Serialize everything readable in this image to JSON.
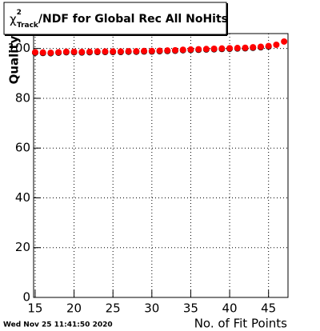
{
  "chart_data": {
    "type": "scatter",
    "title": {
      "symbol": "χ",
      "sup": "2",
      "sub": "Track",
      "text": "/NDF for Global Rec All NoHits"
    },
    "x_label": "No. of Fit Points",
    "y_label": "Quality",
    "timestamp": "Wed Nov 25 11:41:50 2020",
    "series": [
      {
        "color": "#000000",
        "x": [
          15,
          16,
          17,
          18,
          19,
          20,
          21,
          22,
          23,
          24,
          25,
          26,
          27,
          28,
          29,
          30,
          31,
          32,
          33,
          34,
          35,
          36,
          37,
          38,
          39,
          40,
          41,
          42,
          43,
          44,
          45
        ],
        "values": [
          98.3,
          98.2,
          98.1,
          98.3,
          98.5,
          98.5,
          98.4,
          98.5,
          98.6,
          98.6,
          98.6,
          98.6,
          98.7,
          98.7,
          98.8,
          98.8,
          98.9,
          99.0,
          99.1,
          99.3,
          99.4,
          99.5,
          99.6,
          99.7,
          99.8,
          99.9,
          100.0,
          100.1,
          100.3,
          100.5,
          100.8
        ]
      },
      {
        "color": "#ff0000",
        "x": [
          15,
          16,
          17,
          18,
          19,
          20,
          21,
          22,
          23,
          24,
          25,
          26,
          27,
          28,
          29,
          30,
          31,
          32,
          33,
          34,
          35,
          36,
          37,
          38,
          39,
          40,
          41,
          42,
          43,
          44,
          45,
          46,
          47
        ],
        "values": [
          98.5,
          98.4,
          98.3,
          98.5,
          98.7,
          98.7,
          98.6,
          98.7,
          98.8,
          98.8,
          98.8,
          98.8,
          98.9,
          98.9,
          99.0,
          99.0,
          99.1,
          99.2,
          99.3,
          99.5,
          99.6,
          99.7,
          99.8,
          99.9,
          100.0,
          100.1,
          100.2,
          100.3,
          100.5,
          100.7,
          101.0,
          101.5,
          102.8
        ]
      }
    ],
    "xlim": [
      14.8,
      47.5
    ],
    "xticks": [
      15,
      20,
      25,
      30,
      35,
      40,
      45
    ],
    "ylim": [
      0,
      106
    ],
    "yticks": [
      0,
      20,
      40,
      60,
      80,
      100
    ],
    "grid": true
  }
}
